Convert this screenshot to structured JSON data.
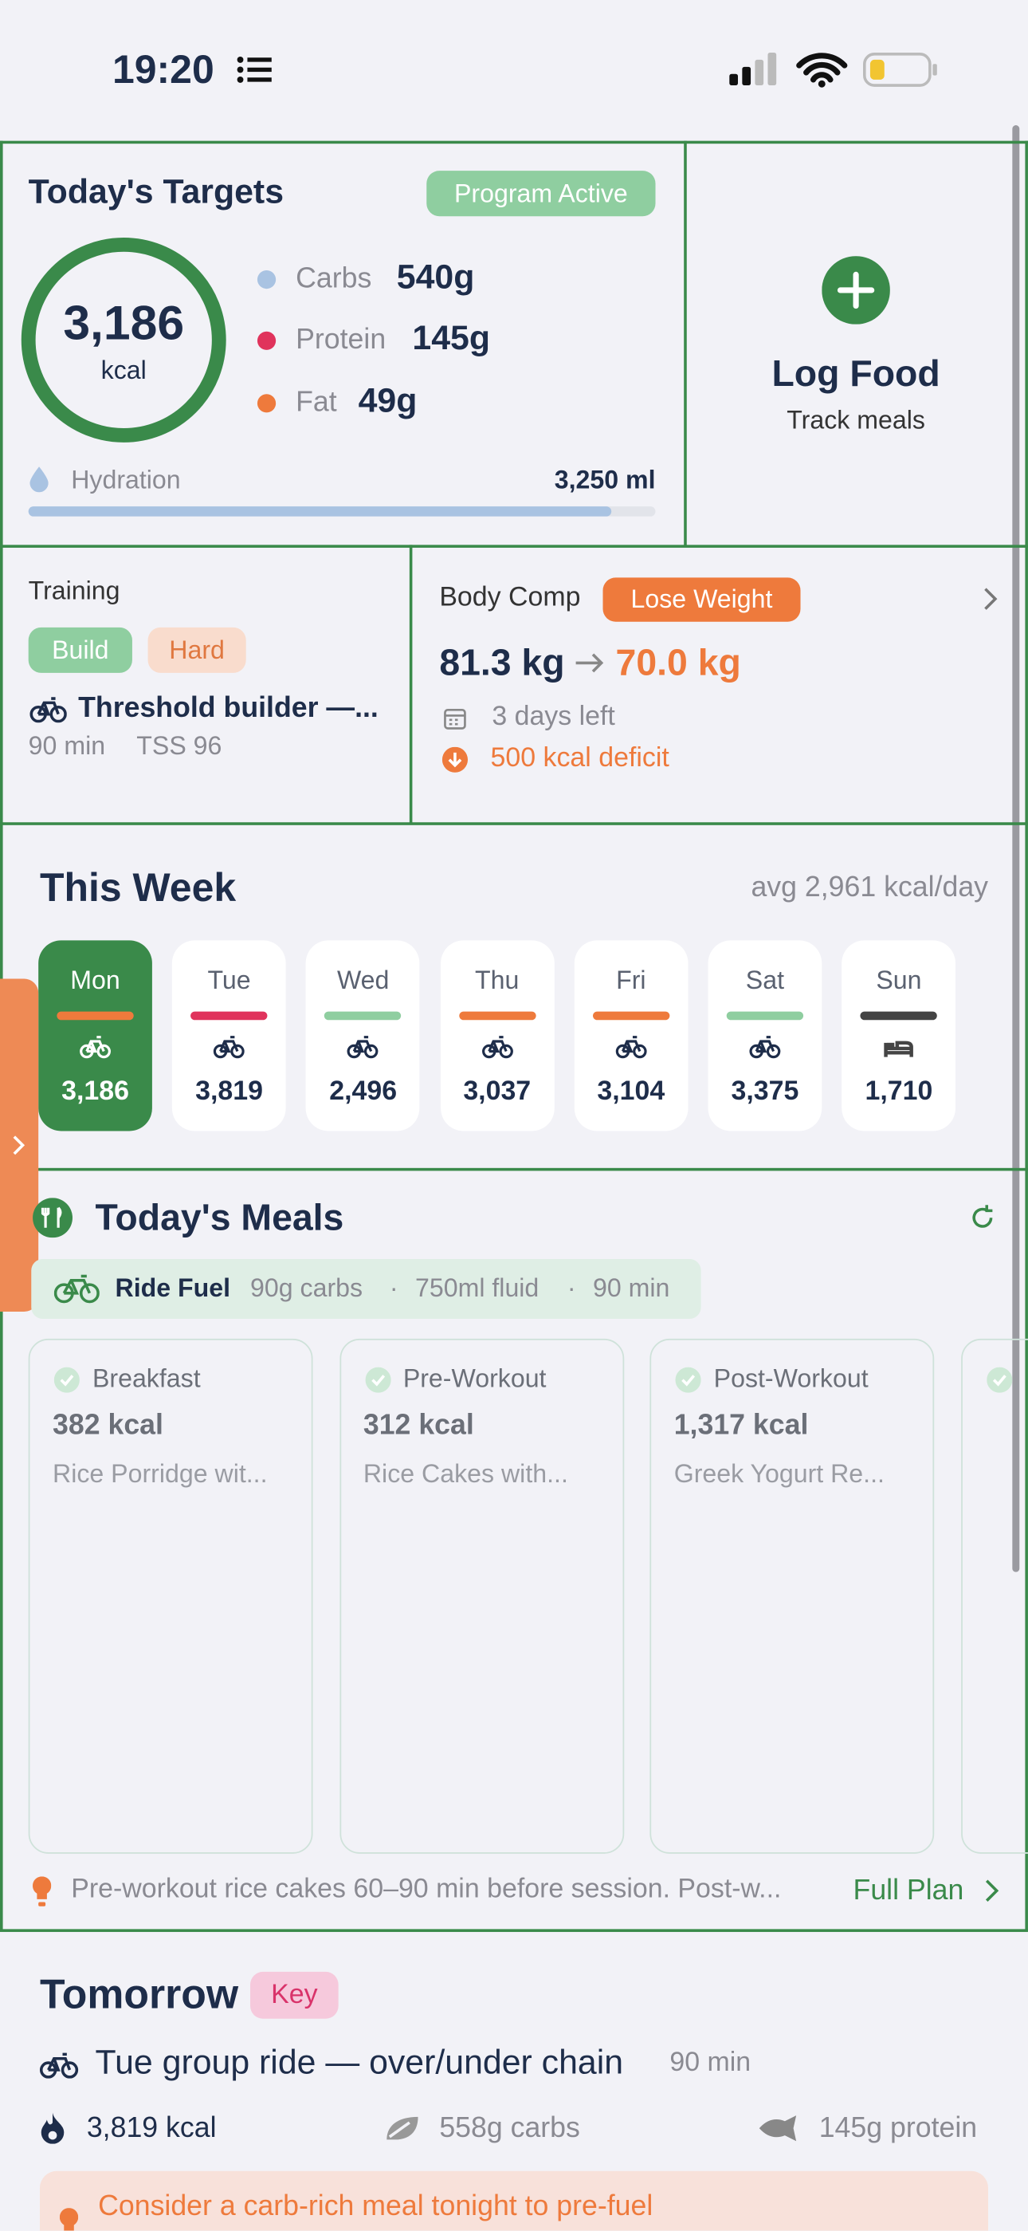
{
  "status_bar": {
    "time": "19:20"
  },
  "targets": {
    "title": "Today's Targets",
    "badge": "Program Active",
    "kcal": "3,186",
    "kcal_unit": "kcal",
    "macros": [
      {
        "name": "Carbs",
        "amount": "540g"
      },
      {
        "name": "Protein",
        "amount": "145g"
      },
      {
        "name": "Fat",
        "amount": "49g"
      }
    ],
    "hydration_label": "Hydration",
    "hydration_value": "3,250 ml"
  },
  "log_food": {
    "title": "Log Food",
    "subtitle": "Track meals"
  },
  "training": {
    "title": "Training",
    "tags": [
      "Build",
      "Hard"
    ],
    "session": "Threshold builder —...",
    "duration": "90 min",
    "tss": "TSS 96"
  },
  "body_comp": {
    "title": "Body Comp",
    "goal": "Lose Weight",
    "current": "81.3 kg",
    "target": "70.0 kg",
    "days_left": "3 days left",
    "deficit": "500 kcal deficit"
  },
  "week": {
    "title": "This Week",
    "average": "avg 2,961 kcal/day",
    "days": [
      {
        "day": "Mon",
        "kcal": "3,186"
      },
      {
        "day": "Tue",
        "kcal": "3,819"
      },
      {
        "day": "Wed",
        "kcal": "2,496"
      },
      {
        "day": "Thu",
        "kcal": "3,037"
      },
      {
        "day": "Fri",
        "kcal": "3,104"
      },
      {
        "day": "Sat",
        "kcal": "3,375"
      },
      {
        "day": "Sun",
        "kcal": "1,710"
      }
    ]
  },
  "meals": {
    "title": "Today's Meals",
    "ride_fuel": {
      "label": "Ride Fuel",
      "carbs": "90g carbs",
      "fluid": "750ml fluid",
      "duration": "90 min"
    },
    "cards": [
      {
        "name": "Breakfast",
        "kcal": "382 kcal",
        "description": "Rice Porridge wit..."
      },
      {
        "name": "Pre-Workout",
        "kcal": "312 kcal",
        "description": "Rice Cakes with..."
      },
      {
        "name": "Post-Workout",
        "kcal": "1,317 kcal",
        "description": "Greek Yogurt Re..."
      }
    ],
    "tip": "Pre-workout rice cakes 60–90 min before session. Post-w...",
    "link": "Full Plan"
  },
  "tomorrow": {
    "title": "Tomorrow",
    "badge": "Key",
    "session": "Tue group ride — over/under chain",
    "duration": "90 min",
    "kcal": "3,819 kcal",
    "carbs": "558g carbs",
    "protein": "145g protein",
    "advice": "Consider a carb-rich meal tonight to pre-fuel"
  }
}
